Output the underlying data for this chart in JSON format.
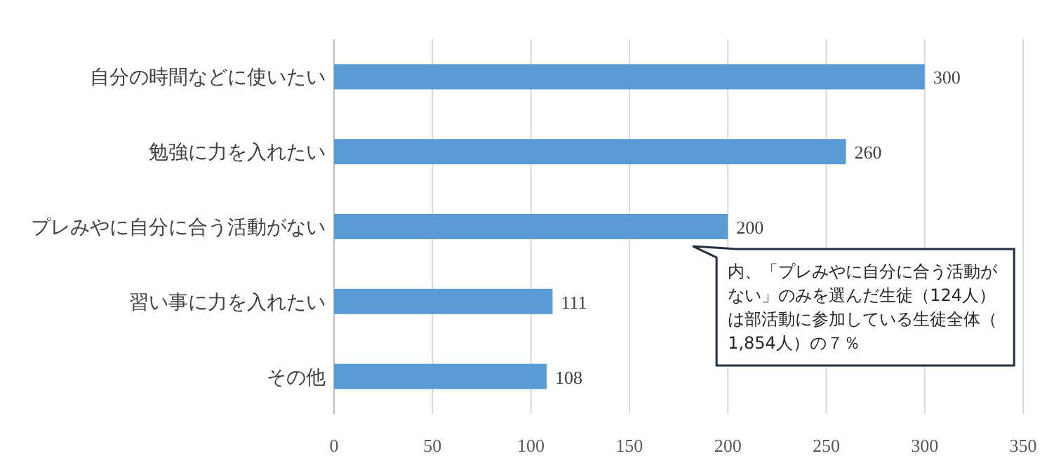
{
  "chart_data": {
    "type": "bar",
    "orientation": "horizontal",
    "categories": [
      "自分の時間などに使いたい",
      "勉強に力を入れたい",
      "プレみやに自分に合う活動がない",
      "習い事に力を入れたい",
      "その他"
    ],
    "values": [
      300,
      260,
      200,
      111,
      108
    ],
    "color": "#5b9bd5",
    "data_labels": true,
    "xlim": [
      0,
      350
    ],
    "xticks": [
      0,
      50,
      100,
      150,
      200,
      250,
      300,
      350
    ],
    "grid": "x",
    "annotations": [
      {
        "text": "内、「プレみやに自分に合う活動がない」のみを選んだ生徒（124人）は部活動に参加している生徒全体（1,854人）の７％",
        "x": 200,
        "y": "プレみやに自分に合う活動がない"
      }
    ]
  }
}
